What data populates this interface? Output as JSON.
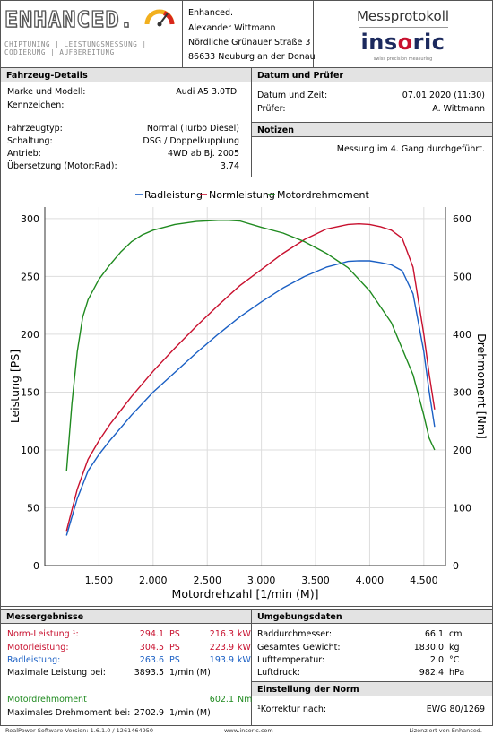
{
  "header": {
    "logo_text": "ENHANCED.",
    "logo_sub": "CHIPTUNING | LEISTUNGSMESSUNG | CODIERUNG | AUFBEREITUNG",
    "address": [
      "Enhanced.",
      "Alexander Wittmann",
      "Nördliche Grünauer Straße 3",
      "86633 Neuburg an der Donau"
    ],
    "protocol_title": "Messprotokoll",
    "brand_a": "ins",
    "brand_b": "o",
    "brand_c": "ric",
    "brand_sub": "swiss precision measuring"
  },
  "vehicle": {
    "title": "Fahrzeug-Details",
    "rows": [
      {
        "label": "Marke und Modell:",
        "value": "Audi A5 3.0TDI"
      },
      {
        "label": "Kennzeichen:",
        "value": ""
      },
      {
        "label": "Fahrzeugtyp:",
        "value": "Normal (Turbo Diesel)"
      },
      {
        "label": "Schaltung:",
        "value": "DSG / Doppelkupplung"
      },
      {
        "label": "Antrieb:",
        "value": "4WD ab Bj. 2005"
      },
      {
        "label": "Übersetzung (Motor:Rad):",
        "value": "3.74"
      }
    ]
  },
  "date": {
    "title": "Datum und Prüfer",
    "rows": [
      {
        "label": "Datum und Zeit:",
        "value": "07.01.2020 (11:30)"
      },
      {
        "label": "Prüfer:",
        "value": "A. Wittmann"
      }
    ]
  },
  "notes": {
    "title": "Notizen",
    "text": "Messung im 4. Gang durchgeführt."
  },
  "chart_data": {
    "type": "line",
    "xlabel": "Motordrehzahl [1/min (M)]",
    "ylabel": "Leistung [PS]",
    "y2label": "Drehmoment [Nm]",
    "xlim": [
      1000,
      4700
    ],
    "ylim": [
      0,
      310
    ],
    "y2lim": [
      0,
      620
    ],
    "x_ticks": [
      1500,
      2000,
      2500,
      3000,
      3500,
      4000,
      4500
    ],
    "x_tick_labels": [
      "1.500",
      "2.000",
      "2.500",
      "3.000",
      "3.500",
      "4.000",
      "4.500"
    ],
    "y_ticks": [
      0,
      50,
      100,
      150,
      200,
      250,
      300
    ],
    "y2_ticks": [
      0,
      100,
      200,
      300,
      400,
      500,
      600
    ],
    "legend_position": "top",
    "series": [
      {
        "name": "Radleistung",
        "color": "#1a5fc4",
        "axis": "left",
        "x": [
          1200,
          1300,
          1400,
          1500,
          1600,
          1800,
          2000,
          2200,
          2400,
          2600,
          2800,
          3000,
          3200,
          3400,
          3600,
          3800,
          3900,
          4000,
          4100,
          4200,
          4300,
          4400,
          4500,
          4550,
          4600
        ],
        "y": [
          26,
          58,
          82,
          96,
          108,
          130,
          150,
          167,
          184,
          200,
          215,
          228,
          240,
          250,
          258,
          263,
          263.6,
          263.5,
          262,
          260,
          255,
          235,
          185,
          150,
          120
        ]
      },
      {
        "name": "Normleistung",
        "color": "#c8102e",
        "axis": "left",
        "x": [
          1200,
          1300,
          1400,
          1500,
          1600,
          1800,
          2000,
          2200,
          2400,
          2600,
          2800,
          3000,
          3200,
          3400,
          3600,
          3800,
          3900,
          4000,
          4100,
          4200,
          4300,
          4400,
          4500,
          4550,
          4600
        ],
        "y": [
          30,
          66,
          92,
          108,
          122,
          146,
          168,
          188,
          207,
          225,
          242,
          256,
          270,
          282,
          291,
          295,
          295.5,
          295,
          293,
          290,
          283,
          258,
          200,
          165,
          135
        ]
      },
      {
        "name": "Motordrehmoment",
        "color": "#1f8a1f",
        "axis": "right",
        "x": [
          1200,
          1250,
          1300,
          1350,
          1400,
          1500,
          1600,
          1700,
          1800,
          1900,
          2000,
          2200,
          2400,
          2600,
          2700,
          2800,
          3000,
          3200,
          3400,
          3600,
          3800,
          4000,
          4200,
          4400,
          4500,
          4550,
          4600
        ],
        "y": [
          163,
          280,
          370,
          430,
          460,
          495,
          520,
          542,
          560,
          572,
          580,
          590,
          595,
          597,
          597,
          596,
          585,
          575,
          560,
          540,
          515,
          475,
          420,
          330,
          260,
          220,
          200
        ]
      }
    ]
  },
  "results": {
    "title": "Messergebnisse",
    "rows": [
      {
        "label": "Norm-Leistung ¹:",
        "ps": "294.1",
        "ps_unit": "PS",
        "kw": "216.3",
        "kw_unit": "kW"
      },
      {
        "label": "Motorleistung:",
        "ps": "304.5",
        "ps_unit": "PS",
        "kw": "223.9",
        "kw_unit": "kW"
      },
      {
        "label": "Radleistung:",
        "ps": "263.6",
        "ps_unit": "PS",
        "kw": "193.9",
        "kw_unit": "kW"
      }
    ],
    "max_power_label": "Maximale Leistung bei:",
    "max_power_value": "3893.5",
    "max_power_unit": "1/min (M)",
    "torque_label": "Motordrehmoment",
    "torque_value": "602.1",
    "torque_unit": "Nm",
    "max_torque_label": "Maximales Drehmoment bei:",
    "max_torque_value": "2702.9",
    "max_torque_unit": "1/min (M)"
  },
  "environment": {
    "title": "Umgebungsdaten",
    "rows": [
      {
        "label": "Raddurchmesser:",
        "value": "66.1",
        "unit": "cm"
      },
      {
        "label": "Gesamtes Gewicht:",
        "value": "1830.0",
        "unit": "kg"
      },
      {
        "label": "Lufttemperatur:",
        "value": "2.0",
        "unit": "°C"
      },
      {
        "label": "Luftdruck:",
        "value": "982.4",
        "unit": "hPa"
      }
    ]
  },
  "norm": {
    "title": "Einstellung der Norm",
    "label": "¹Korrektur nach:",
    "value": "EWG 80/1269"
  },
  "footer": {
    "left": "RealPower Software Version: 1.6.1.0 / 1261464950",
    "center": "www.insoric.com",
    "right": "Lizenziert von Enhanced."
  }
}
